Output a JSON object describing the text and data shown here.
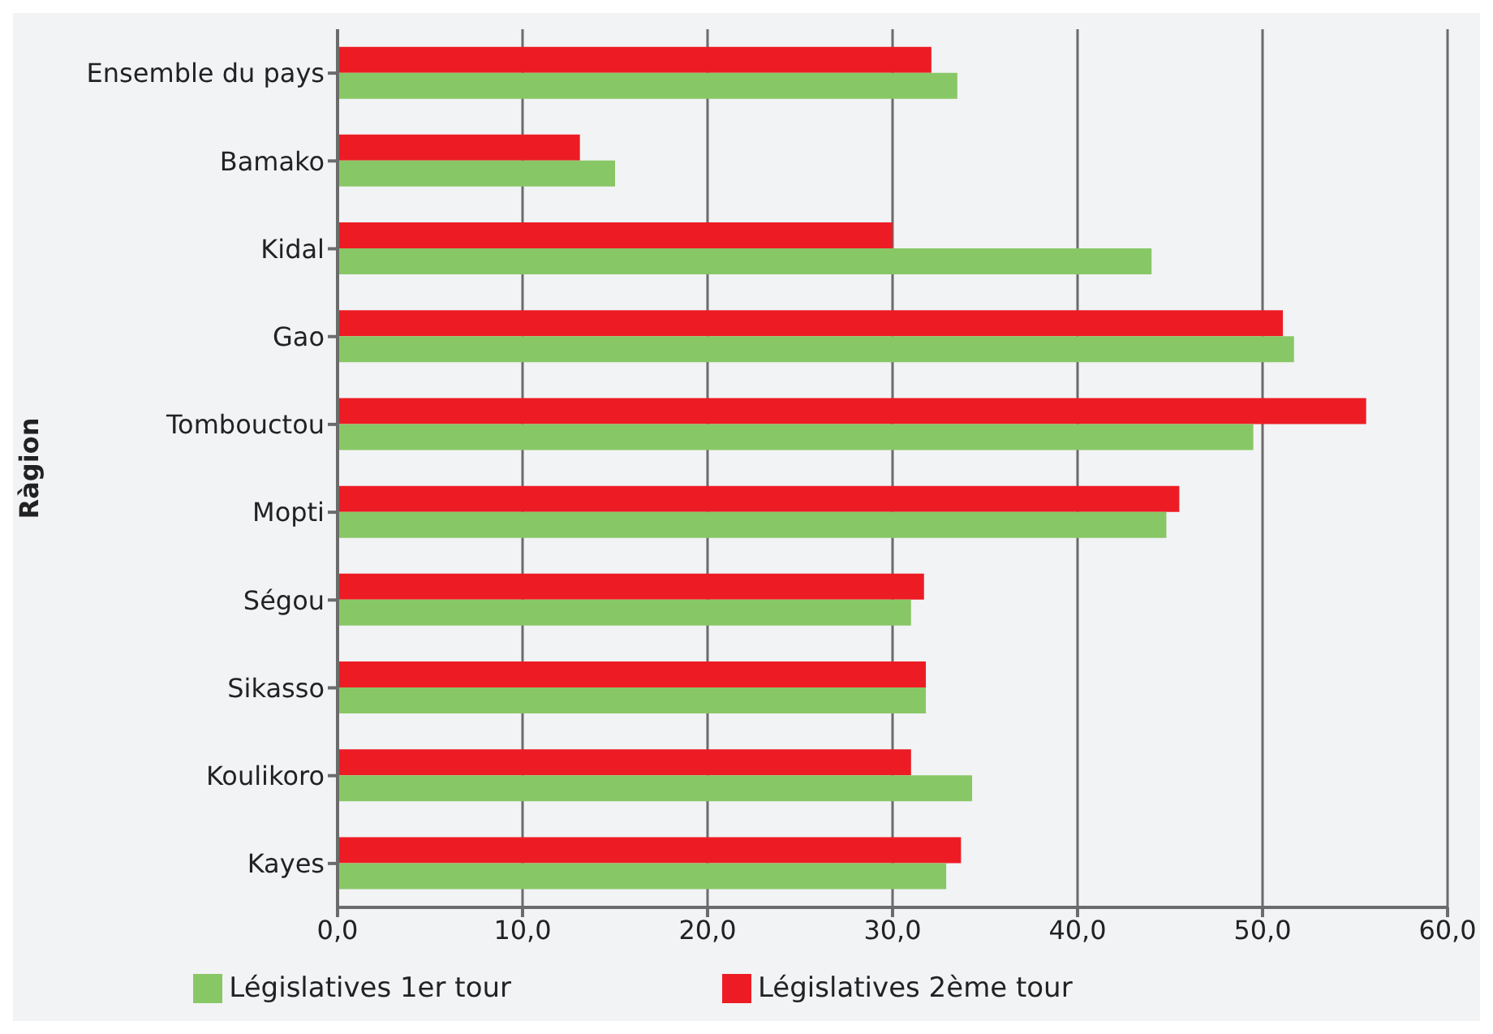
{
  "chart_data": {
    "type": "bar",
    "orientation": "horizontal",
    "ylabel": "Ràgion",
    "categories": [
      "Ensemble du pays",
      "Bamako",
      "Kidal",
      "Gao",
      "Tombouctou",
      "Mopti",
      "Ségou",
      "Sikasso",
      "Koulikoro",
      "Kayes"
    ],
    "series": [
      {
        "name": "Législatives 2ème tour",
        "color": "#ed1c24",
        "values": [
          32.1,
          13.1,
          30.0,
          51.1,
          55.6,
          45.5,
          31.7,
          31.8,
          31.0,
          33.7
        ]
      },
      {
        "name": "Législatives 1er tour",
        "color": "#88c766",
        "values": [
          33.5,
          15.0,
          44.0,
          51.7,
          49.5,
          44.8,
          31.0,
          31.8,
          34.3,
          32.9
        ]
      }
    ],
    "xlim": [
      0,
      60
    ],
    "xticks": [
      {
        "value": 0,
        "label": "0,0"
      },
      {
        "value": 10,
        "label": "10,0"
      },
      {
        "value": 20,
        "label": "20,0"
      },
      {
        "value": 30,
        "label": "30,0"
      },
      {
        "value": 40,
        "label": "40,0"
      },
      {
        "value": 50,
        "label": "50,0"
      },
      {
        "value": 60,
        "label": "60,0"
      }
    ],
    "grid": "x",
    "legend": "bottom"
  }
}
